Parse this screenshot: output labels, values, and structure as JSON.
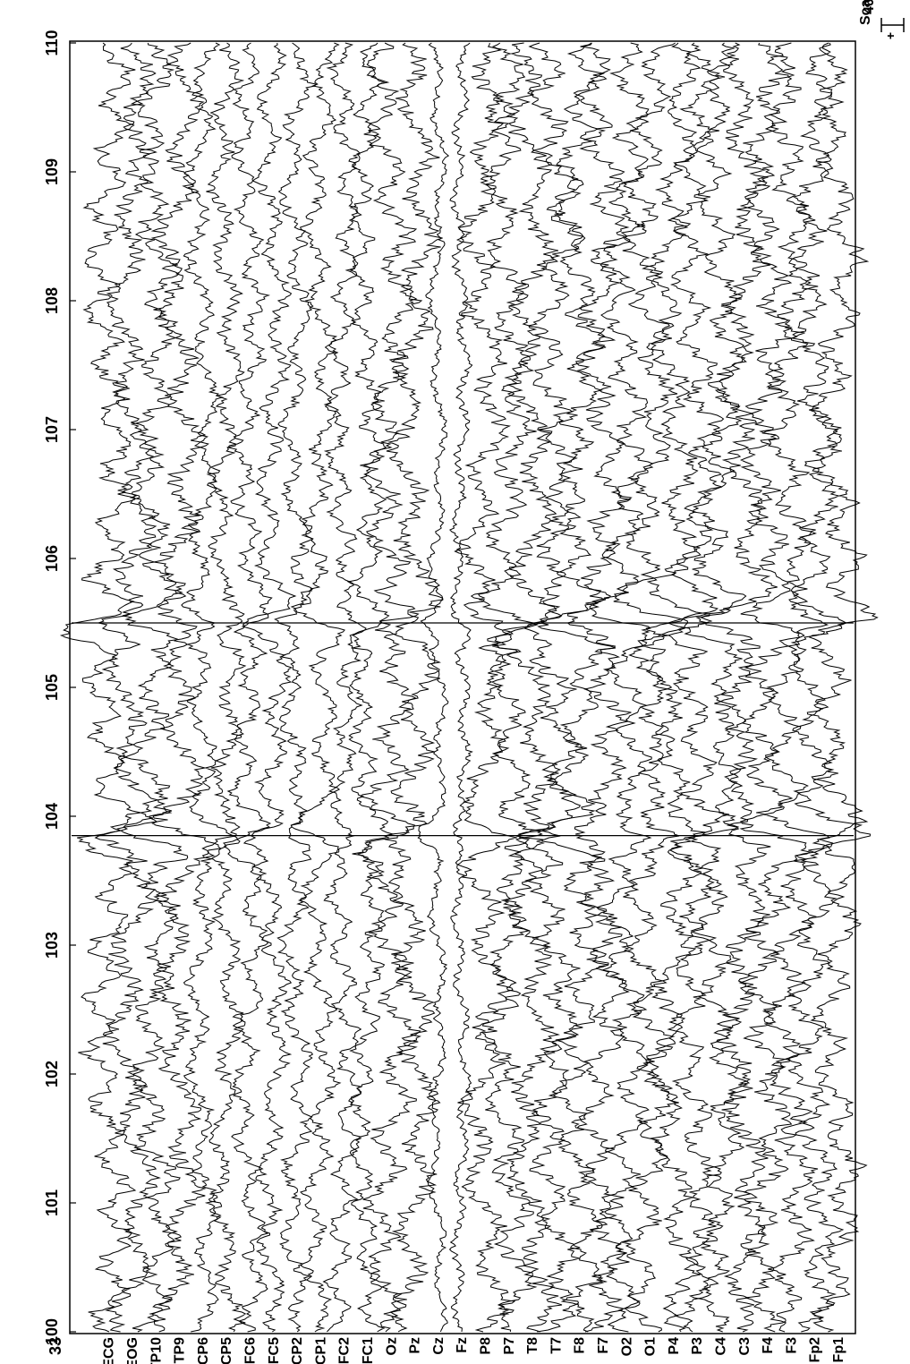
{
  "chart_data": {
    "type": "line",
    "title": "",
    "xlabel": "",
    "ylabel": "",
    "x_range": [
      100,
      110
    ],
    "x_ticks": [
      "100",
      "101",
      "102",
      "103",
      "104",
      "105",
      "106",
      "107",
      "108",
      "109",
      "110"
    ],
    "channels": [
      "Fp1",
      "Fp2",
      "F3",
      "F4",
      "C3",
      "C4",
      "P3",
      "P4",
      "O1",
      "O2",
      "F7",
      "F8",
      "T7",
      "T8",
      "P7",
      "P8",
      "Fz",
      "Cz",
      "Pz",
      "Oz",
      "FC1",
      "FC2",
      "CP1",
      "CP2",
      "FC5",
      "FC6",
      "CP5",
      "CP6",
      "TP9",
      "TP10",
      "EOG",
      "ECG"
    ],
    "bottom_label": "33",
    "scale": {
      "label": "Scale",
      "value": "40",
      "symbol": "+"
    },
    "grid": false,
    "legend": "none",
    "orientation": "rotated-90-clockwise",
    "line_color": "#000000",
    "events": [
      {
        "x": 103.85,
        "note": ""
      },
      {
        "x": 105.5,
        "note": ""
      }
    ]
  }
}
